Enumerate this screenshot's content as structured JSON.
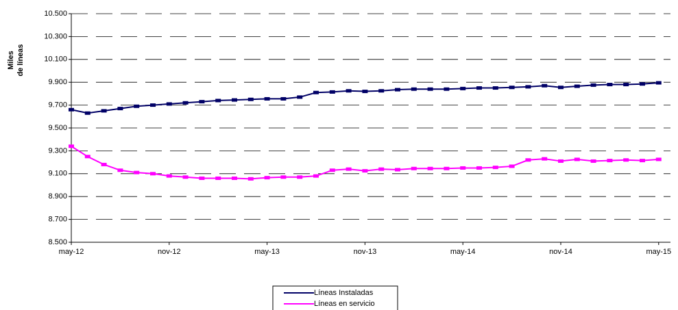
{
  "chart_data": {
    "type": "line",
    "y_label": [
      "Miles",
      "de líneas"
    ],
    "categories": [
      "may-12",
      null,
      null,
      null,
      null,
      null,
      "nov-12",
      null,
      null,
      null,
      null,
      null,
      "may-13",
      null,
      null,
      null,
      null,
      null,
      "nov-13",
      null,
      null,
      null,
      null,
      null,
      "may-14",
      null,
      null,
      null,
      null,
      null,
      "nov-14",
      null,
      null,
      null,
      null,
      null,
      "may-15"
    ],
    "series": [
      {
        "name": "Líneas Instaladas",
        "color": "#000066",
        "values": [
          9660,
          9630,
          9650,
          9670,
          9690,
          9700,
          9710,
          9720,
          9730,
          9740,
          9745,
          9750,
          9755,
          9755,
          9770,
          9810,
          9815,
          9825,
          9820,
          9825,
          9835,
          9840,
          9840,
          9840,
          9845,
          9850,
          9850,
          9855,
          9860,
          9870,
          9855,
          9865,
          9875,
          9880,
          9880,
          9885,
          9895
        ]
      },
      {
        "name": "Líneas en servicio",
        "color": "#ff00ff",
        "values": [
          9340,
          9250,
          9180,
          9130,
          9110,
          9100,
          9080,
          9070,
          9060,
          9060,
          9060,
          9055,
          9065,
          9070,
          9070,
          9080,
          9130,
          9140,
          9125,
          9140,
          9135,
          9145,
          9145,
          9145,
          9150,
          9150,
          9155,
          9165,
          9220,
          9230,
          9210,
          9225,
          9210,
          9215,
          9220,
          9215,
          9225
        ]
      }
    ],
    "ylim": [
      8500,
      10500
    ],
    "yticks": [
      {
        "value": 8500,
        "label": "8.500"
      },
      {
        "value": 8700,
        "label": "8.700"
      },
      {
        "value": 8900,
        "label": "8.900"
      },
      {
        "value": 9100,
        "label": "9.100"
      },
      {
        "value": 9300,
        "label": "9.300"
      },
      {
        "value": 9500,
        "label": "9.500"
      },
      {
        "value": 9700,
        "label": "9.700"
      },
      {
        "value": 9900,
        "label": "9.900"
      },
      {
        "value": 10100,
        "label": "10.100"
      },
      {
        "value": 10300,
        "label": "10.300"
      },
      {
        "value": 10500,
        "label": "10.500"
      }
    ],
    "grid": true,
    "legend": "bottom"
  }
}
